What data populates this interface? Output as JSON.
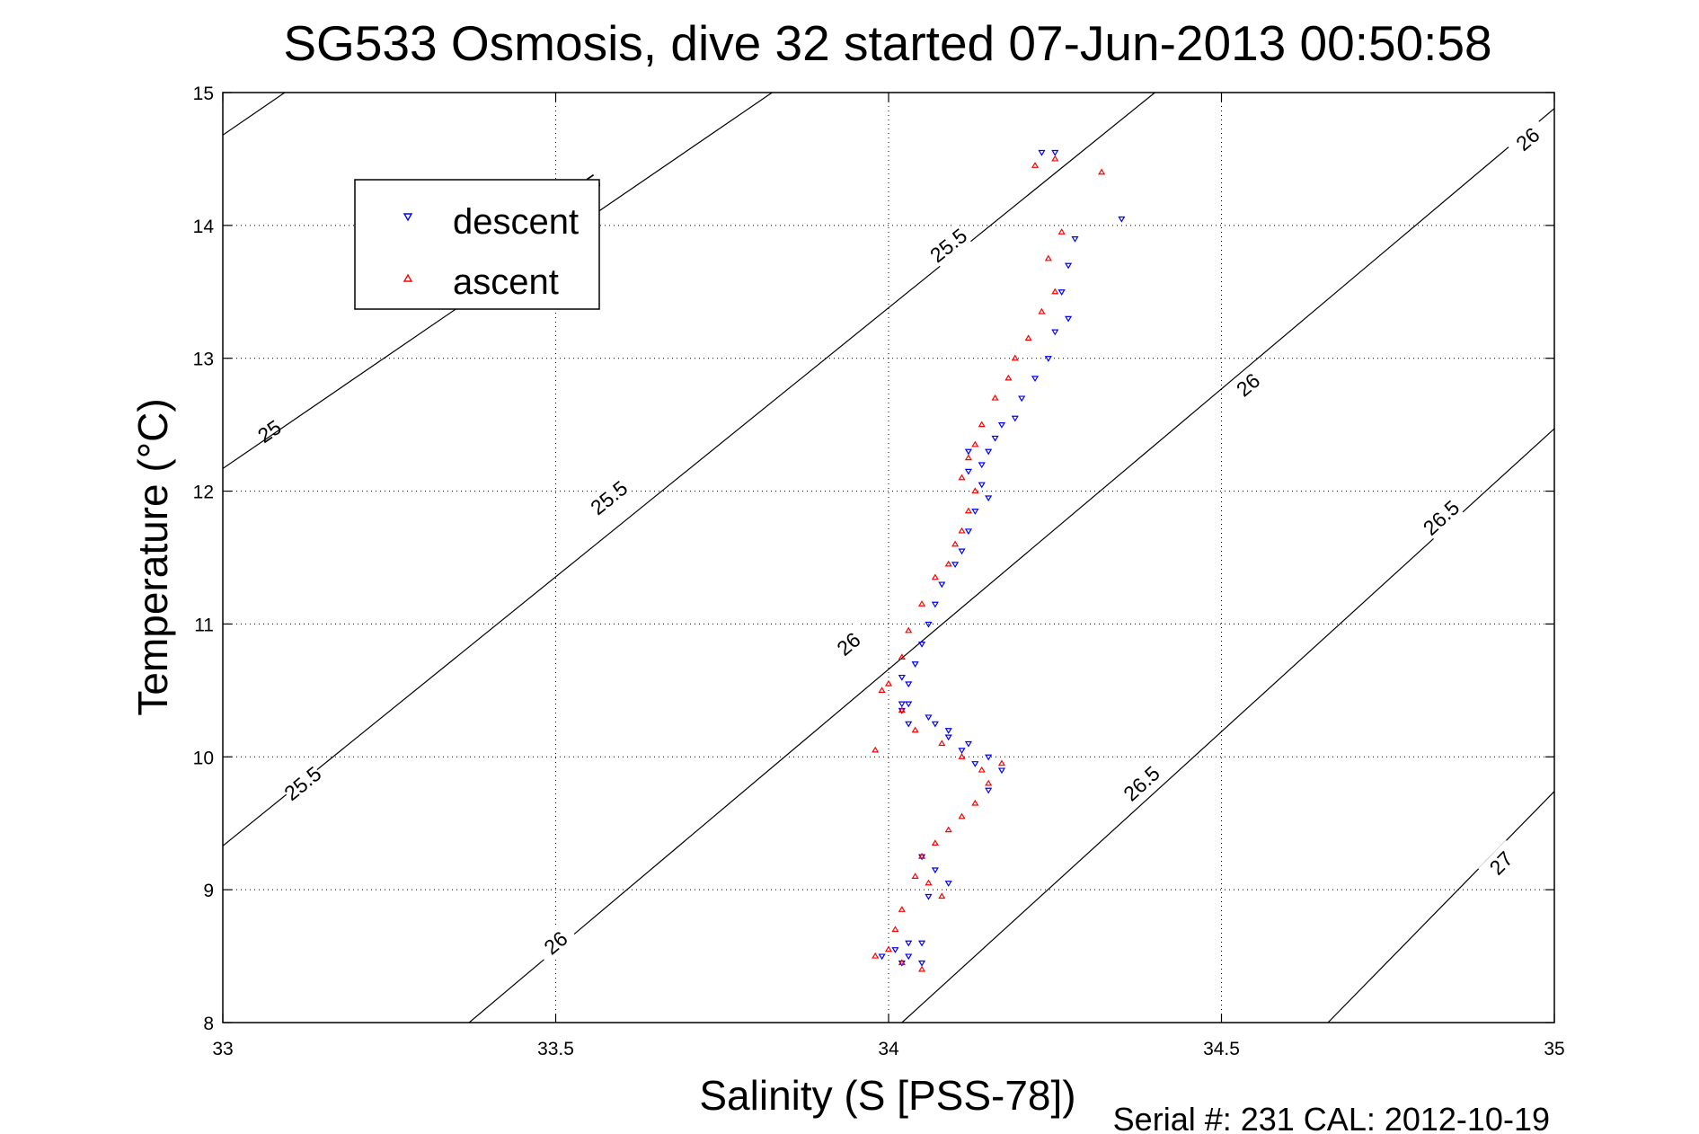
{
  "chart_data": {
    "type": "scatter",
    "title": "SG533 Osmosis, dive 32 started 07-Jun-2013 00:50:58",
    "xlabel": "Salinity (S [PSS-78])",
    "ylabel": "Temperature (°C)",
    "xlim": [
      33,
      35
    ],
    "ylim": [
      8,
      15
    ],
    "xticks": [
      "33",
      "33.5",
      "34",
      "34.5",
      "35"
    ],
    "yticks": [
      "8",
      "9",
      "10",
      "11",
      "12",
      "13",
      "14",
      "15"
    ],
    "grid": true,
    "legend_position": "top-left",
    "footer": "Serial #: 231  CAL: 2012-10-19",
    "contours": [
      {
        "level": "25",
        "line_pts": [
          [
            33.0,
            14.68
          ],
          [
            33.5,
            16.4
          ]
        ],
        "labels": [
          [
            33.55,
            14.3
          ],
          [
            33.07,
            12.45
          ]
        ]
      },
      {
        "level": "25",
        "line_pts": [
          [
            33.0,
            12.17
          ],
          [
            34.0,
            15.6
          ]
        ],
        "labels": []
      },
      {
        "level": "25.5",
        "line_pts": [
          [
            33.0,
            9.33
          ],
          [
            34.4,
            15.0
          ]
        ],
        "labels": [
          [
            33.58,
            11.95
          ],
          [
            33.12,
            9.8
          ],
          [
            34.09,
            13.85
          ]
        ]
      },
      {
        "level": "26",
        "line_pts": [
          [
            33.37,
            8.0
          ],
          [
            35.0,
            14.88
          ]
        ],
        "labels": [
          [
            33.5,
            8.6
          ],
          [
            33.94,
            10.85
          ],
          [
            34.54,
            12.8
          ],
          [
            34.96,
            14.65
          ]
        ]
      },
      {
        "level": "26.5",
        "line_pts": [
          [
            34.02,
            8.0
          ],
          [
            35.0,
            12.47
          ]
        ],
        "labels": [
          [
            34.38,
            9.8
          ],
          [
            34.83,
            11.8
          ]
        ]
      },
      {
        "level": "27",
        "line_pts": [
          [
            34.66,
            8.0
          ],
          [
            35.0,
            9.74
          ]
        ],
        "labels": [
          [
            34.92,
            9.2
          ]
        ]
      }
    ],
    "series": [
      {
        "name": "descent",
        "color": "#0000ff",
        "marker": "triangle-down",
        "x": [
          34.23,
          34.25,
          34.35,
          34.28,
          34.27,
          34.26,
          34.27,
          34.25,
          34.24,
          34.22,
          34.2,
          34.19,
          34.17,
          34.16,
          34.15,
          34.14,
          34.12,
          34.12,
          34.14,
          34.15,
          34.13,
          34.12,
          34.11,
          34.1,
          34.08,
          34.07,
          34.06,
          34.05,
          34.04,
          34.03,
          34.02,
          34.02,
          34.03,
          34.02,
          34.03,
          34.06,
          34.09,
          34.12,
          34.15,
          34.17,
          34.15,
          34.13,
          34.11,
          34.09,
          34.07,
          34.05,
          34.07,
          34.09,
          34.06,
          34.05,
          34.03,
          34.02,
          34.01,
          33.99,
          34.03,
          34.05
        ],
        "y": [
          14.55,
          14.55,
          14.05,
          13.9,
          13.7,
          13.5,
          13.3,
          13.2,
          13.0,
          12.85,
          12.7,
          12.55,
          12.5,
          12.4,
          12.3,
          12.2,
          12.3,
          12.15,
          12.05,
          11.95,
          11.85,
          11.7,
          11.55,
          11.45,
          11.3,
          11.15,
          11.0,
          10.85,
          10.7,
          10.55,
          10.4,
          10.6,
          10.4,
          10.35,
          10.25,
          10.3,
          10.2,
          10.1,
          10.0,
          9.9,
          9.75,
          9.95,
          10.05,
          10.15,
          10.25,
          9.25,
          9.15,
          9.05,
          8.95,
          8.6,
          8.5,
          8.45,
          8.55,
          8.5,
          8.6,
          8.45
        ]
      },
      {
        "name": "ascent",
        "color": "#ff0000",
        "marker": "triangle-up",
        "x": [
          34.22,
          34.25,
          34.32,
          34.26,
          34.24,
          34.25,
          34.23,
          34.21,
          34.19,
          34.18,
          34.16,
          34.14,
          34.13,
          34.12,
          34.11,
          34.13,
          34.12,
          34.11,
          34.1,
          34.09,
          34.07,
          34.05,
          34.03,
          34.02,
          34.0,
          33.99,
          33.98,
          34.02,
          34.04,
          34.08,
          34.11,
          34.14,
          34.17,
          34.15,
          34.13,
          34.11,
          34.09,
          34.07,
          34.05,
          34.04,
          34.06,
          34.08,
          34.02,
          34.01,
          34.0,
          33.98,
          34.02,
          34.05
        ],
        "y": [
          14.45,
          14.5,
          14.4,
          13.95,
          13.75,
          13.5,
          13.35,
          13.15,
          13.0,
          12.85,
          12.7,
          12.5,
          12.35,
          12.25,
          12.1,
          12.0,
          11.85,
          11.7,
          11.6,
          11.45,
          11.35,
          11.15,
          10.95,
          10.75,
          10.55,
          10.5,
          10.05,
          10.35,
          10.2,
          10.1,
          10.0,
          9.9,
          9.95,
          9.8,
          9.65,
          9.55,
          9.45,
          9.35,
          9.25,
          9.1,
          9.05,
          8.95,
          8.85,
          8.7,
          8.55,
          8.5,
          8.45,
          8.4
        ]
      }
    ]
  }
}
